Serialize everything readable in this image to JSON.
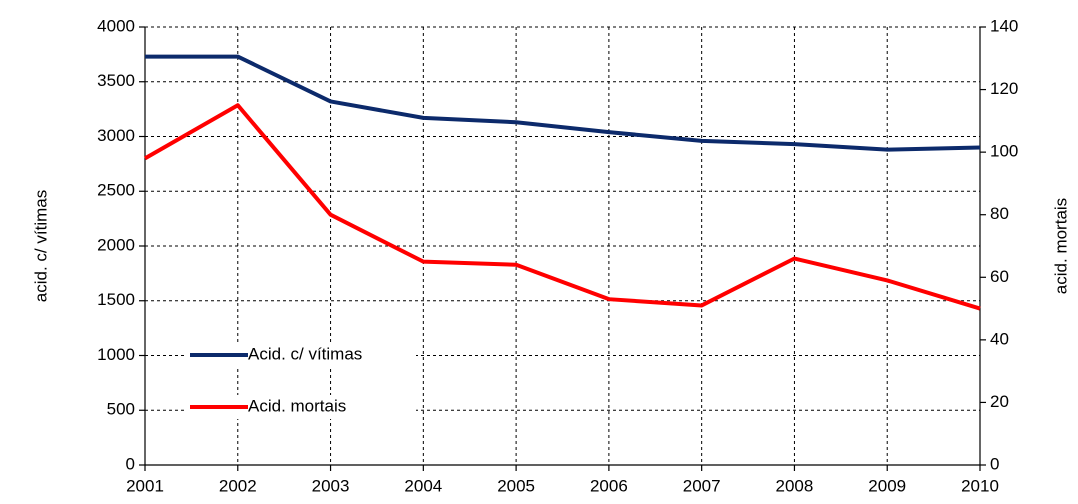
{
  "chart_data": {
    "type": "line",
    "x": [
      2001,
      2002,
      2003,
      2004,
      2005,
      2006,
      2007,
      2008,
      2009,
      2010
    ],
    "xlim": [
      2001,
      2010
    ],
    "xticks": [
      2001,
      2002,
      2003,
      2004,
      2005,
      2006,
      2007,
      2008,
      2009,
      2010
    ],
    "ylabel": "acid. c/ vítimas",
    "y2label": "acid. mortais",
    "ylim": [
      0,
      4000
    ],
    "yticks": [
      0,
      500,
      1000,
      1500,
      2000,
      2500,
      3000,
      3500,
      4000
    ],
    "y2lim": [
      0,
      140
    ],
    "y2ticks": [
      0,
      20,
      40,
      60,
      80,
      100,
      120,
      140
    ],
    "grid": true,
    "legend": "left",
    "series": [
      {
        "name": "Acid. c/ vítimas",
        "color": "#0c2a6b",
        "values": [
          3730,
          3730,
          3320,
          3170,
          3130,
          3040,
          2960,
          2930,
          2880,
          2900
        ]
      },
      {
        "name": "Acid. mortais",
        "color": "#ff0000",
        "axis": "y2",
        "values": [
          98,
          115,
          80,
          65,
          64,
          53,
          51,
          66,
          59,
          50
        ]
      }
    ]
  }
}
